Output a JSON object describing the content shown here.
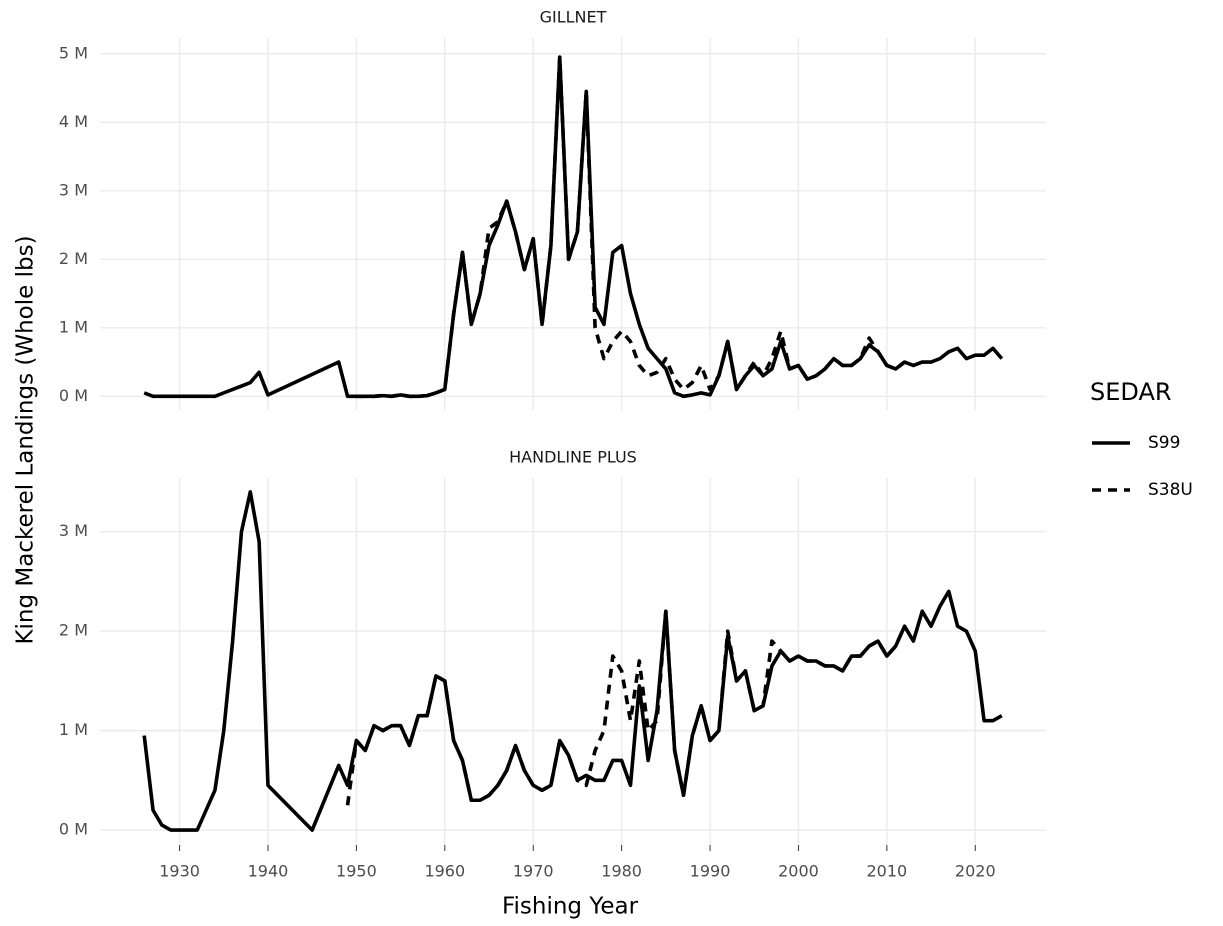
{
  "chart_data": {
    "type": "line",
    "x_label": "Fishing Year",
    "y_label": "King Mackerel Landings (Whole lbs)",
    "legend_title": "SEDAR",
    "xlim": [
      1921,
      2028
    ],
    "xticks": [
      1930,
      1940,
      1950,
      1960,
      1970,
      1980,
      1990,
      2000,
      2010,
      2020
    ],
    "grid": true,
    "line_styles": {
      "S99": "solid",
      "S38U": "dashed"
    },
    "panels": [
      {
        "title": "GILLNET",
        "ylim": [
          -200000,
          5230000
        ],
        "yticks": [
          {
            "value": 0,
            "label": "0 M"
          },
          {
            "value": 1000000,
            "label": "1 M"
          },
          {
            "value": 2000000,
            "label": "2 M"
          },
          {
            "value": 3000000,
            "label": "3 M"
          },
          {
            "value": 4000000,
            "label": "4 M"
          },
          {
            "value": 5000000,
            "label": "5 M"
          }
        ],
        "x": [
          1926,
          1927,
          1928,
          1929,
          1930,
          1931,
          1932,
          1933,
          1934,
          1935,
          1936,
          1937,
          1938,
          1939,
          1940,
          1948,
          1949,
          1950,
          1951,
          1952,
          1953,
          1954,
          1955,
          1956,
          1957,
          1958,
          1959,
          1960,
          1961,
          1962,
          1963,
          1964,
          1965,
          1966,
          1967,
          1968,
          1969,
          1970,
          1971,
          1972,
          1973,
          1974,
          1975,
          1976,
          1977,
          1978,
          1979,
          1980,
          1981,
          1982,
          1983,
          1984,
          1985,
          1986,
          1987,
          1988,
          1989,
          1990,
          1991,
          1992,
          1993,
          1994,
          1995,
          1996,
          1997,
          1998,
          1999,
          2000,
          2001,
          2002,
          2003,
          2004,
          2005,
          2006,
          2007,
          2008,
          2009,
          2010,
          2011,
          2012,
          2013,
          2014,
          2015,
          2016,
          2017,
          2018,
          2019,
          2020,
          2021,
          2022,
          2023
        ],
        "series": [
          {
            "name": "S99",
            "color": "#000000",
            "values": [
              50000,
              0,
              0,
              0,
              0,
              0,
              0,
              0,
              0,
              50000,
              100000,
              150000,
              200000,
              350000,
              20000,
              500000,
              0,
              0,
              0,
              0,
              10000,
              0,
              20000,
              0,
              0,
              10000,
              50000,
              100000,
              1200000,
              2100000,
              1050000,
              1500000,
              2200000,
              2500000,
              2850000,
              2400000,
              1850000,
              2300000,
              1050000,
              2200000,
              4950000,
              2000000,
              2400000,
              4450000,
              1300000,
              1050000,
              2100000,
              2200000,
              1500000,
              1050000,
              700000,
              550000,
              400000,
              50000,
              0,
              20000,
              50000,
              20000,
              300000,
              800000,
              100000,
              300000,
              450000,
              300000,
              400000,
              800000,
              400000,
              450000,
              250000,
              300000,
              400000,
              550000,
              450000,
              450000,
              550000,
              750000,
              650000,
              450000,
              400000,
              500000,
              450000,
              500000,
              500000,
              550000,
              650000,
              700000,
              550000,
              600000,
              600000,
              700000,
              550000
            ]
          },
          {
            "name": "S38U",
            "color": "#000000",
            "values": [
              null,
              null,
              null,
              null,
              null,
              null,
              null,
              null,
              null,
              null,
              null,
              null,
              null,
              null,
              null,
              null,
              null,
              0,
              0,
              0,
              10000,
              0,
              20000,
              0,
              0,
              10000,
              50000,
              100000,
              1200000,
              2100000,
              1050000,
              1500000,
              2450000,
              2550000,
              2850000,
              2400000,
              1850000,
              2300000,
              1050000,
              2200000,
              4950000,
              2000000,
              2400000,
              4450000,
              1000000,
              550000,
              800000,
              950000,
              800000,
              450000,
              300000,
              350000,
              550000,
              250000,
              100000,
              200000,
              450000,
              100000,
              300000,
              800000,
              100000,
              300000,
              500000,
              300000,
              550000,
              950000,
              400000,
              450000,
              250000,
              300000,
              400000,
              550000,
              450000,
              450000,
              550000,
              850000,
              650000,
              450000,
              400000,
              500000,
              null,
              null,
              null,
              null,
              null,
              null,
              null,
              null,
              null,
              null,
              null
            ]
          }
        ]
      },
      {
        "title": "HANDLINE PLUS",
        "ylim": [
          -150000,
          3540000
        ],
        "yticks": [
          {
            "value": 0,
            "label": "0 M"
          },
          {
            "value": 1000000,
            "label": "1 M"
          },
          {
            "value": 2000000,
            "label": "2 M"
          },
          {
            "value": 3000000,
            "label": "3 M"
          }
        ],
        "x": [
          1926,
          1927,
          1928,
          1929,
          1930,
          1931,
          1932,
          1933,
          1934,
          1935,
          1936,
          1937,
          1938,
          1939,
          1940,
          1945,
          1948,
          1949,
          1950,
          1951,
          1952,
          1953,
          1954,
          1955,
          1956,
          1957,
          1958,
          1959,
          1960,
          1961,
          1962,
          1963,
          1964,
          1965,
          1966,
          1967,
          1968,
          1969,
          1970,
          1971,
          1972,
          1973,
          1974,
          1975,
          1976,
          1977,
          1978,
          1979,
          1980,
          1981,
          1982,
          1983,
          1984,
          1985,
          1986,
          1987,
          1988,
          1989,
          1990,
          1991,
          1992,
          1993,
          1994,
          1995,
          1996,
          1997,
          1998,
          1999,
          2000,
          2001,
          2002,
          2003,
          2004,
          2005,
          2006,
          2007,
          2008,
          2009,
          2010,
          2011,
          2012,
          2013,
          2014,
          2015,
          2016,
          2017,
          2018,
          2019,
          2020,
          2021,
          2022,
          2023
        ],
        "series": [
          {
            "name": "S99",
            "color": "#000000",
            "values": [
              950000,
              200000,
              50000,
              0,
              0,
              0,
              0,
              200000,
              400000,
              1000000,
              1900000,
              3000000,
              3400000,
              2900000,
              450000,
              0,
              650000,
              450000,
              900000,
              800000,
              1050000,
              1000000,
              1050000,
              1050000,
              850000,
              1150000,
              1150000,
              1550000,
              1500000,
              900000,
              700000,
              300000,
              300000,
              350000,
              450000,
              600000,
              850000,
              600000,
              450000,
              400000,
              450000,
              900000,
              750000,
              500000,
              550000,
              500000,
              500000,
              700000,
              700000,
              450000,
              1450000,
              700000,
              1200000,
              2200000,
              800000,
              350000,
              950000,
              1250000,
              900000,
              1000000,
              1950000,
              1500000,
              1600000,
              1200000,
              1250000,
              1650000,
              1800000,
              1700000,
              1750000,
              1700000,
              1700000,
              1650000,
              1650000,
              1600000,
              1750000,
              1750000,
              1850000,
              1900000,
              1750000,
              1850000,
              2050000,
              1900000,
              2200000,
              2050000,
              2250000,
              2400000,
              2050000,
              2000000,
              1800000,
              1100000,
              1100000,
              1150000
            ]
          },
          {
            "name": "S38U",
            "color": "#000000",
            "values": [
              null,
              null,
              null,
              null,
              null,
              null,
              null,
              null,
              null,
              null,
              null,
              null,
              null,
              null,
              null,
              null,
              null,
              250000,
              900000,
              800000,
              1050000,
              1000000,
              1050000,
              1050000,
              850000,
              1150000,
              1150000,
              1550000,
              1500000,
              900000,
              700000,
              300000,
              300000,
              350000,
              450000,
              600000,
              850000,
              600000,
              450000,
              400000,
              450000,
              900000,
              750000,
              500000,
              450000,
              800000,
              1000000,
              1750000,
              1600000,
              1100000,
              1700000,
              1000000,
              1100000,
              2200000,
              800000,
              350000,
              950000,
              1250000,
              900000,
              1000000,
              2000000,
              1500000,
              1600000,
              1200000,
              1250000,
              1900000,
              1800000,
              1700000,
              1750000,
              1700000,
              1700000,
              1650000,
              1650000,
              1600000,
              1750000,
              1750000,
              1850000,
              1900000,
              1750000,
              1850000,
              2050000,
              null,
              null,
              null,
              null,
              null,
              null,
              null,
              null,
              null,
              null,
              null
            ]
          }
        ]
      }
    ]
  }
}
